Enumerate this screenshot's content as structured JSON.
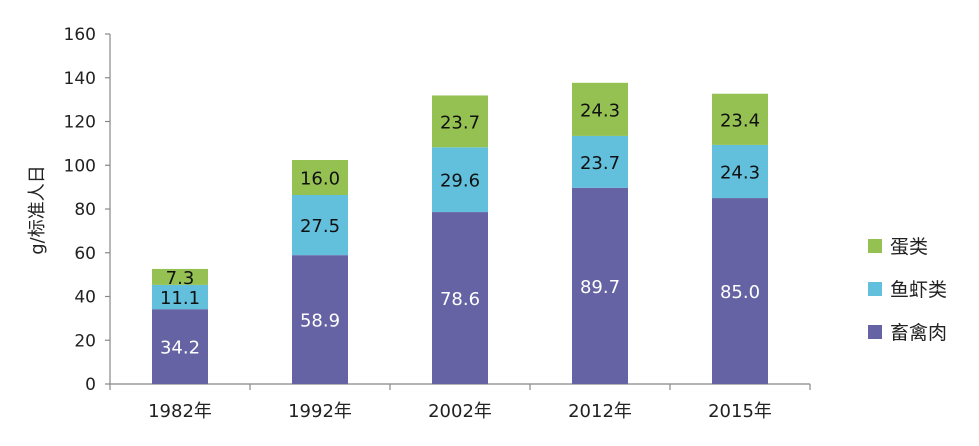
{
  "chart_data": {
    "type": "bar",
    "stacked": true,
    "title": "",
    "xlabel": "",
    "ylabel": "g/标准人日",
    "ylim": [
      0,
      160
    ],
    "yticks": [
      0,
      20,
      40,
      60,
      80,
      100,
      120,
      140,
      160
    ],
    "categories": [
      "1982年",
      "1992年",
      "2002年",
      "2012年",
      "2015年"
    ],
    "series": [
      {
        "name": "畜禽肉",
        "color": "#6563a3",
        "label_color": "#ffffff",
        "values": [
          34.2,
          58.9,
          78.6,
          89.7,
          85.0
        ],
        "labels": [
          "34.2",
          "58.9",
          "78.6",
          "89.7",
          "85.0"
        ]
      },
      {
        "name": "鱼虾类",
        "color": "#62c0dd",
        "label_color": "#111111",
        "values": [
          11.1,
          27.5,
          29.6,
          23.7,
          24.3
        ],
        "labels": [
          "11.1",
          "27.5",
          "29.6",
          "23.7",
          "24.3"
        ]
      },
      {
        "name": "蛋类",
        "color": "#95c153",
        "label_color": "#111111",
        "values": [
          7.3,
          16.0,
          23.7,
          24.3,
          23.4
        ],
        "labels": [
          "7.3",
          "16.0",
          "23.7",
          "24.3",
          "23.4"
        ]
      }
    ],
    "legend": {
      "position": "right",
      "order": [
        "蛋类",
        "鱼虾类",
        "畜禽肉"
      ]
    },
    "grid": false
  }
}
